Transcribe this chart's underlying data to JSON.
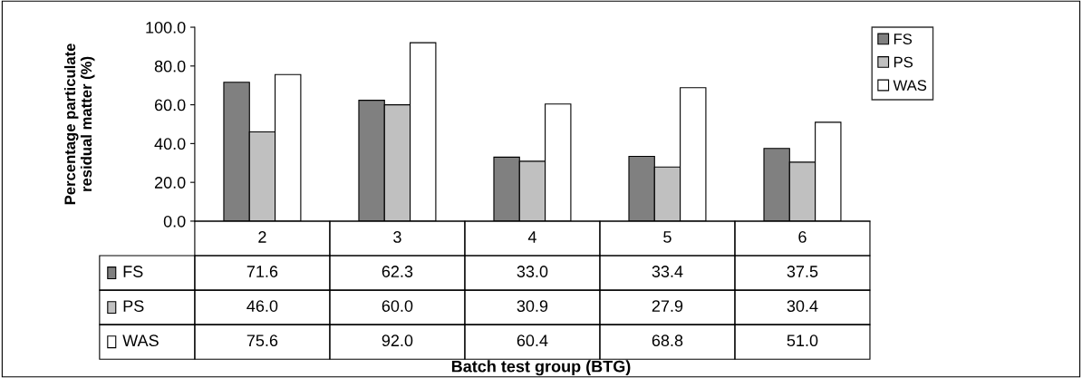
{
  "chart_data": {
    "type": "bar",
    "annotations": [
      "Batch test group (BTG)"
    ],
    "ylabel": "Percentage particulate residual matter (%)",
    "categories": [
      "2",
      "3",
      "4",
      "5",
      "6"
    ],
    "series": [
      {
        "name": "FS",
        "color": "#808080",
        "values": [
          71.6,
          62.3,
          33.0,
          33.4,
          37.5
        ],
        "value_labels": [
          "71.6",
          "62.3",
          "33.0",
          "33.4",
          "37.5"
        ]
      },
      {
        "name": "PS",
        "color": "#c0c0c0",
        "values": [
          46.0,
          60.0,
          30.9,
          27.9,
          30.4
        ],
        "value_labels": [
          "46.0",
          "60.0",
          "30.9",
          "27.9",
          "30.4"
        ]
      },
      {
        "name": "WAS",
        "color": "#ffffff",
        "values": [
          75.6,
          92.0,
          60.4,
          68.8,
          51.0
        ],
        "value_labels": [
          "75.6",
          "92.0",
          "60.4",
          "68.8",
          "51.0"
        ]
      }
    ],
    "ylim": [
      0,
      100
    ],
    "yticks": [
      {
        "value": 0,
        "label": "0.0"
      },
      {
        "value": 20,
        "label": "20.0"
      },
      {
        "value": 40,
        "label": "40.0"
      },
      {
        "value": 60,
        "label": "60.0"
      },
      {
        "value": 80,
        "label": "80.0"
      },
      {
        "value": 100,
        "label": "100.0"
      }
    ],
    "legend": "right",
    "grid": false
  }
}
